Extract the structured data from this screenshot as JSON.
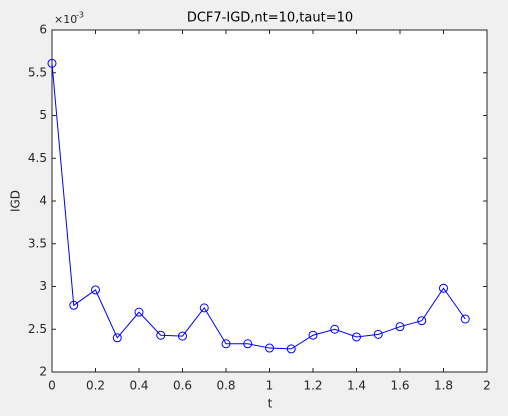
{
  "chart_data": {
    "type": "line",
    "title": "DCF7-IGD,nt=10,taut=10",
    "x_label": "t",
    "y_label": "IGD",
    "y_multiplier": "×10",
    "y_exponent": "-3",
    "x": [
      0,
      0.1,
      0.2,
      0.3,
      0.4,
      0.5,
      0.6,
      0.7,
      0.8,
      0.9,
      1,
      1.1,
      1.2,
      1.3,
      1.4,
      1.5,
      1.6,
      1.7,
      1.8,
      1.9
    ],
    "series": [
      {
        "color": "#0000ff",
        "values": [
          5.61,
          2.78,
          2.96,
          2.4,
          2.7,
          2.43,
          2.42,
          2.75,
          2.33,
          2.33,
          2.28,
          2.27,
          2.43,
          2.5,
          2.41,
          2.44,
          2.53,
          2.6,
          2.98,
          2.62
        ]
      }
    ],
    "xlim": [
      0,
      2
    ],
    "xticks": [
      0,
      0.2,
      0.4,
      0.6,
      0.8,
      1,
      1.2,
      1.4,
      1.6,
      1.8,
      2
    ],
    "ylim": [
      2,
      6
    ],
    "yticks": [
      2,
      2.5,
      3,
      3.5,
      4,
      4.5,
      5,
      5.5,
      6
    ],
    "grid": false,
    "marker": "circle"
  }
}
